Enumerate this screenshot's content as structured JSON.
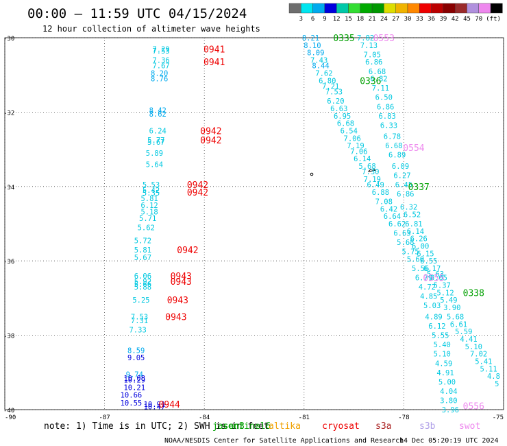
{
  "header": {
    "title": "00:00 – 11:59 UTC 04/15/2024",
    "subtitle": "12 hour collection of altimeter wave heights"
  },
  "colorbar": {
    "colors": [
      "#6e6e6e",
      "#00e5ef",
      "#00aaee",
      "#0000dd",
      "#00c8a8",
      "#33dd33",
      "#00aa00",
      "#009800",
      "#dddd00",
      "#f0b400",
      "#ff8800",
      "#ee0000",
      "#bb0000",
      "#880000",
      "#9a2a2a",
      "#b090dd",
      "#ee88ee",
      "#000000"
    ],
    "labels": [
      "3",
      "6",
      "9",
      "12",
      "15",
      "18",
      "21",
      "24",
      "27",
      "30",
      "33",
      "36",
      "39",
      "42",
      "45",
      "70"
    ],
    "unit": "(ft)"
  },
  "footer": {
    "note_prefix": "note:  1) Time is in UTC;  2) SWH is in feet",
    "credits": "NOAA/NESDIS Center for Satellite Applications and Research",
    "timestamp": "14 Dec 05:20:19 UTC 2024",
    "missions": [
      {
        "name": "jason3",
        "color": "#00a000"
      },
      {
        "name": "sentinel6",
        "color": "#00a000"
      },
      {
        "name": "altika",
        "color": "#f0a000"
      },
      {
        "name": "cryosat",
        "color": "#ee0000"
      },
      {
        "name": "s3a",
        "color": "#aa2222"
      },
      {
        "name": "s3b",
        "color": "#b0a0e8"
      },
      {
        "name": "swot",
        "color": "#ee88ee"
      }
    ]
  },
  "chart_data": {
    "type": "scatter",
    "xlim": [
      -90,
      -75
    ],
    "ylim": [
      -40,
      -30
    ],
    "x_ticks": [
      -90,
      -87,
      -84,
      -81,
      -78,
      -75
    ],
    "y_ticks": [
      -30,
      -32,
      -34,
      -36,
      -38,
      -40
    ],
    "grid": true,
    "time_labels": [
      {
        "text": "0941",
        "lon": -83.7,
        "lat": -30.3,
        "color": "#ee0000"
      },
      {
        "text": "0941",
        "lon": -83.7,
        "lat": -30.65,
        "color": "#ee0000"
      },
      {
        "text": "0942",
        "lon": -83.8,
        "lat": -32.5,
        "color": "#ee0000"
      },
      {
        "text": "0942",
        "lon": -83.8,
        "lat": -32.75,
        "color": "#ee0000"
      },
      {
        "text": "0942",
        "lon": -84.2,
        "lat": -33.95,
        "color": "#ee0000"
      },
      {
        "text": "0942",
        "lon": -84.2,
        "lat": -34.15,
        "color": "#ee0000"
      },
      {
        "text": "0942",
        "lon": -84.5,
        "lat": -35.7,
        "color": "#ee0000"
      },
      {
        "text": "0943",
        "lon": -84.7,
        "lat": -36.4,
        "color": "#ee0000"
      },
      {
        "text": "0943",
        "lon": -84.7,
        "lat": -36.55,
        "color": "#ee0000"
      },
      {
        "text": "0943",
        "lon": -84.8,
        "lat": -37.05,
        "color": "#ee0000"
      },
      {
        "text": "0943",
        "lon": -84.85,
        "lat": -37.5,
        "color": "#ee0000"
      },
      {
        "text": "0944",
        "lon": -85.05,
        "lat": -39.85,
        "color": "#ee0000"
      },
      {
        "text": "0335",
        "lon": -79.8,
        "lat": -30.0,
        "color": "#00a000"
      },
      {
        "text": "0336",
        "lon": -79.0,
        "lat": -31.15,
        "color": "#00a000"
      },
      {
        "text": "0337",
        "lon": -77.55,
        "lat": -34.0,
        "color": "#00a000"
      },
      {
        "text": "0338",
        "lon": -75.9,
        "lat": -36.85,
        "color": "#00a000"
      },
      {
        "text": "0553",
        "lon": -78.6,
        "lat": -30.0,
        "color": "#ee88ee"
      },
      {
        "text": "0554",
        "lon": -77.7,
        "lat": -32.95,
        "color": "#ee88ee"
      },
      {
        "text": "0555",
        "lon": -77.1,
        "lat": -36.45,
        "color": "#ee88ee"
      },
      {
        "text": "0556",
        "lon": -75.9,
        "lat": -39.9,
        "color": "#ee88ee"
      }
    ],
    "wave_heights": [
      {
        "v": "7.29",
        "lon": -85.3,
        "lat": -30.3,
        "c": "#00c8e0"
      },
      {
        "v": "7.53",
        "lon": -85.3,
        "lat": -30.35,
        "c": "#00c8e0"
      },
      {
        "v": "7.36",
        "lon": -85.3,
        "lat": -30.6,
        "c": "#00c8e0"
      },
      {
        "v": "7.67",
        "lon": -85.3,
        "lat": -30.75,
        "c": "#00c8e0"
      },
      {
        "v": "8.20",
        "lon": -85.35,
        "lat": -30.95,
        "c": "#00aaee"
      },
      {
        "v": "8.76",
        "lon": -85.35,
        "lat": -31.1,
        "c": "#00aaee"
      },
      {
        "v": "8.42",
        "lon": -85.4,
        "lat": -31.95,
        "c": "#00aaee"
      },
      {
        "v": "8.62",
        "lon": -85.4,
        "lat": -32.05,
        "c": "#00aaee"
      },
      {
        "v": "6.24",
        "lon": -85.4,
        "lat": -32.5,
        "c": "#00c8e0"
      },
      {
        "v": "5.77",
        "lon": -85.45,
        "lat": -32.75,
        "c": "#00c8e0"
      },
      {
        "v": "5.67",
        "lon": -85.45,
        "lat": -32.8,
        "c": "#00c8e0"
      },
      {
        "v": "5.89",
        "lon": -85.5,
        "lat": -33.1,
        "c": "#00c8e0"
      },
      {
        "v": "5.64",
        "lon": -85.5,
        "lat": -33.4,
        "c": "#00c8e0"
      },
      {
        "v": "5.53",
        "lon": -85.6,
        "lat": -33.95,
        "c": "#00c8e0"
      },
      {
        "v": "5.42",
        "lon": -85.6,
        "lat": -34.1,
        "c": "#00c8e0"
      },
      {
        "v": "5.35",
        "lon": -85.6,
        "lat": -34.17,
        "c": "#00c8e0"
      },
      {
        "v": "5.81",
        "lon": -85.65,
        "lat": -34.32,
        "c": "#00c8e0"
      },
      {
        "v": "6.12",
        "lon": -85.65,
        "lat": -34.5,
        "c": "#00c8e0"
      },
      {
        "v": "5.18",
        "lon": -85.65,
        "lat": -34.68,
        "c": "#00c8e0"
      },
      {
        "v": "5.71",
        "lon": -85.7,
        "lat": -34.85,
        "c": "#00c8e0"
      },
      {
        "v": "5.62",
        "lon": -85.75,
        "lat": -35.1,
        "c": "#00c8e0"
      },
      {
        "v": "5.72",
        "lon": -85.85,
        "lat": -35.45,
        "c": "#00c8e0"
      },
      {
        "v": "5.81",
        "lon": -85.85,
        "lat": -35.7,
        "c": "#00c8e0"
      },
      {
        "v": "5.67",
        "lon": -85.85,
        "lat": -35.9,
        "c": "#00c8e0"
      },
      {
        "v": "6.06",
        "lon": -85.85,
        "lat": -36.4,
        "c": "#00c8e0"
      },
      {
        "v": "5.92",
        "lon": -85.85,
        "lat": -36.55,
        "c": "#00c8e0"
      },
      {
        "v": "5.66",
        "lon": -85.85,
        "lat": -36.62,
        "c": "#00c8e0"
      },
      {
        "v": "5.88",
        "lon": -85.85,
        "lat": -36.7,
        "c": "#00c8e0"
      },
      {
        "v": "5.25",
        "lon": -85.9,
        "lat": -37.05,
        "c": "#00c8e0"
      },
      {
        "v": "7.53",
        "lon": -85.95,
        "lat": -37.5,
        "c": "#00c8e0"
      },
      {
        "v": "7.31",
        "lon": -85.95,
        "lat": -37.6,
        "c": "#00c8e0"
      },
      {
        "v": "7.33",
        "lon": -86.0,
        "lat": -37.85,
        "c": "#00c8e0"
      },
      {
        "v": "8.59",
        "lon": -86.05,
        "lat": -38.4,
        "c": "#00aaee"
      },
      {
        "v": "9.05",
        "lon": -86.05,
        "lat": -38.6,
        "c": "#0000dd"
      },
      {
        "v": "9.74",
        "lon": -86.1,
        "lat": -39.05,
        "c": "#00aaee"
      },
      {
        "v": "10.08",
        "lon": -86.1,
        "lat": -39.15,
        "c": "#0000dd"
      },
      {
        "v": "10.29",
        "lon": -86.1,
        "lat": -39.2,
        "c": "#0000dd"
      },
      {
        "v": "10.21",
        "lon": -86.1,
        "lat": -39.4,
        "c": "#0000dd"
      },
      {
        "v": "10.66",
        "lon": -86.2,
        "lat": -39.6,
        "c": "#0000dd"
      },
      {
        "v": "10.55",
        "lon": -86.2,
        "lat": -39.82,
        "c": "#0000dd"
      },
      {
        "v": "10.91",
        "lon": -85.5,
        "lat": -39.85,
        "c": "#0000dd"
      },
      {
        "v": "10.47",
        "lon": -85.5,
        "lat": -39.92,
        "c": "#0000dd"
      },
      {
        "v": "8.21",
        "lon": -80.8,
        "lat": -30.0,
        "c": "#00aaee"
      },
      {
        "v": "8.10",
        "lon": -80.75,
        "lat": -30.2,
        "c": "#00aaee"
      },
      {
        "v": "8.09",
        "lon": -80.65,
        "lat": -30.4,
        "c": "#00aaee"
      },
      {
        "v": "7.43",
        "lon": -80.55,
        "lat": -30.6,
        "c": "#00c8e0"
      },
      {
        "v": "8.44",
        "lon": -80.5,
        "lat": -30.75,
        "c": "#00aaee"
      },
      {
        "v": "7.62",
        "lon": -80.4,
        "lat": -30.95,
        "c": "#00c8e0"
      },
      {
        "v": "6.80",
        "lon": -80.3,
        "lat": -31.15,
        "c": "#00c8e0"
      },
      {
        "v": "7.21",
        "lon": -80.2,
        "lat": -31.3,
        "c": "#00c8e0"
      },
      {
        "v": "7.53",
        "lon": -80.1,
        "lat": -31.45,
        "c": "#00c8e0"
      },
      {
        "v": "6.20",
        "lon": -80.05,
        "lat": -31.7,
        "c": "#00c8e0"
      },
      {
        "v": "6.63",
        "lon": -79.95,
        "lat": -31.9,
        "c": "#00c8e0"
      },
      {
        "v": "6.95",
        "lon": -79.85,
        "lat": -32.1,
        "c": "#00c8e0"
      },
      {
        "v": "6.68",
        "lon": -79.75,
        "lat": -32.3,
        "c": "#00c8e0"
      },
      {
        "v": "6.54",
        "lon": -79.65,
        "lat": -32.5,
        "c": "#00c8e0"
      },
      {
        "v": "7.06",
        "lon": -79.55,
        "lat": -32.7,
        "c": "#00c8e0"
      },
      {
        "v": "7.19",
        "lon": -79.45,
        "lat": -32.9,
        "c": "#00c8e0"
      },
      {
        "v": "7.06",
        "lon": -79.35,
        "lat": -33.05,
        "c": "#00c8e0"
      },
      {
        "v": "6.14",
        "lon": -79.25,
        "lat": -33.25,
        "c": "#00c8e0"
      },
      {
        "v": "5.68",
        "lon": -79.1,
        "lat": -33.45,
        "c": "#00c8e0"
      },
      {
        "v": "7.30",
        "lon": -79.0,
        "lat": -33.6,
        "c": "#00c8e0"
      },
      {
        "v": "7.19",
        "lon": -78.95,
        "lat": -33.8,
        "c": "#00c8e0"
      },
      {
        "v": "6.49",
        "lon": -78.85,
        "lat": -33.95,
        "c": "#00c8e0"
      },
      {
        "v": "6.88",
        "lon": -78.7,
        "lat": -34.15,
        "c": "#00c8e0"
      },
      {
        "v": "7.08",
        "lon": -78.6,
        "lat": -34.4,
        "c": "#00c8e0"
      },
      {
        "v": "6.42",
        "lon": -78.45,
        "lat": -34.6,
        "c": "#00c8e0"
      },
      {
        "v": "6.64",
        "lon": -78.35,
        "lat": -34.8,
        "c": "#00c8e0"
      },
      {
        "v": "6.62",
        "lon": -78.2,
        "lat": -35.0,
        "c": "#00c8e0"
      },
      {
        "v": "6.63",
        "lon": -78.05,
        "lat": -35.25,
        "c": "#00c8e0"
      },
      {
        "v": "5.68",
        "lon": -77.95,
        "lat": -35.5,
        "c": "#00c8e0"
      },
      {
        "v": "5.75",
        "lon": -77.8,
        "lat": -35.75,
        "c": "#00c8e0"
      },
      {
        "v": "5.60",
        "lon": -77.65,
        "lat": -35.95,
        "c": "#00c8e0"
      },
      {
        "v": "5.56",
        "lon": -77.5,
        "lat": -36.2,
        "c": "#00c8e0"
      },
      {
        "v": "6.79",
        "lon": -77.4,
        "lat": -36.45,
        "c": "#00c8e0"
      },
      {
        "v": "4.72",
        "lon": -77.3,
        "lat": -36.7,
        "c": "#00c8e0"
      },
      {
        "v": "4.85",
        "lon": -77.25,
        "lat": -36.95,
        "c": "#00c8e0"
      },
      {
        "v": "5.03",
        "lon": -77.15,
        "lat": -37.2,
        "c": "#00c8e0"
      },
      {
        "v": "4.89",
        "lon": -77.1,
        "lat": -37.5,
        "c": "#00c8e0"
      },
      {
        "v": "6.12",
        "lon": -77.0,
        "lat": -37.75,
        "c": "#00c8e0"
      },
      {
        "v": "5.55",
        "lon": -76.9,
        "lat": -38.0,
        "c": "#00c8e0"
      },
      {
        "v": "5.40",
        "lon": -76.85,
        "lat": -38.25,
        "c": "#00c8e0"
      },
      {
        "v": "5.10",
        "lon": -76.85,
        "lat": -38.5,
        "c": "#00c8e0"
      },
      {
        "v": "4.59",
        "lon": -76.8,
        "lat": -38.75,
        "c": "#00c8e0"
      },
      {
        "v": "4.91",
        "lon": -76.75,
        "lat": -39.0,
        "c": "#00c8e0"
      },
      {
        "v": "5.00",
        "lon": -76.7,
        "lat": -39.25,
        "c": "#00c8e0"
      },
      {
        "v": "4.04",
        "lon": -76.65,
        "lat": -39.5,
        "c": "#00c8e0"
      },
      {
        "v": "3.80",
        "lon": -76.65,
        "lat": -39.75,
        "c": "#00c8e0"
      },
      {
        "v": "3.96",
        "lon": -76.6,
        "lat": -40.0,
        "c": "#00c8e0"
      },
      {
        "v": "7.82",
        "lon": -79.15,
        "lat": -30.0,
        "c": "#00c8e0"
      },
      {
        "v": "7.13",
        "lon": -79.05,
        "lat": -30.2,
        "c": "#00c8e0"
      },
      {
        "v": "7.05",
        "lon": -78.95,
        "lat": -30.45,
        "c": "#00c8e0"
      },
      {
        "v": "6.86",
        "lon": -78.9,
        "lat": -30.65,
        "c": "#00c8e0"
      },
      {
        "v": "6.68",
        "lon": -78.8,
        "lat": -30.9,
        "c": "#00c8e0"
      },
      {
        "v": "6.82",
        "lon": -78.75,
        "lat": -31.1,
        "c": "#00c8e0"
      },
      {
        "v": "7.11",
        "lon": -78.7,
        "lat": -31.35,
        "c": "#00c8e0"
      },
      {
        "v": "6.50",
        "lon": -78.6,
        "lat": -31.6,
        "c": "#00c8e0"
      },
      {
        "v": "6.86",
        "lon": -78.55,
        "lat": -31.85,
        "c": "#00c8e0"
      },
      {
        "v": "6.83",
        "lon": -78.5,
        "lat": -32.1,
        "c": "#00c8e0"
      },
      {
        "v": "6.33",
        "lon": -78.45,
        "lat": -32.35,
        "c": "#00c8e0"
      },
      {
        "v": "6.78",
        "lon": -78.35,
        "lat": -32.65,
        "c": "#00c8e0"
      },
      {
        "v": "6.68",
        "lon": -78.3,
        "lat": -32.9,
        "c": "#00c8e0"
      },
      {
        "v": "6.89",
        "lon": -78.2,
        "lat": -33.15,
        "c": "#00c8e0"
      },
      {
        "v": "6.09",
        "lon": -78.1,
        "lat": -33.45,
        "c": "#00c8e0"
      },
      {
        "v": "6.27",
        "lon": -78.05,
        "lat": -33.7,
        "c": "#00c8e0"
      },
      {
        "v": "6.45",
        "lon": -78.0,
        "lat": -33.95,
        "c": "#00c8e0"
      },
      {
        "v": "6.86",
        "lon": -77.95,
        "lat": -34.2,
        "c": "#00c8e0"
      },
      {
        "v": "6.32",
        "lon": -77.85,
        "lat": -34.55,
        "c": "#00c8e0"
      },
      {
        "v": "6.52",
        "lon": -77.75,
        "lat": -34.75,
        "c": "#00c8e0"
      },
      {
        "v": "6.81",
        "lon": -77.7,
        "lat": -35.0,
        "c": "#00c8e0"
      },
      {
        "v": "6.14",
        "lon": -77.65,
        "lat": -35.2,
        "c": "#00c8e0"
      },
      {
        "v": "6.26",
        "lon": -77.55,
        "lat": -35.4,
        "c": "#00c8e0"
      },
      {
        "v": "6.00",
        "lon": -77.5,
        "lat": -35.6,
        "c": "#00c8e0"
      },
      {
        "v": "6.15",
        "lon": -77.35,
        "lat": -35.8,
        "c": "#00c8e0"
      },
      {
        "v": "6.55",
        "lon": -77.25,
        "lat": -36.0,
        "c": "#00c8e0"
      },
      {
        "v": "6.17",
        "lon": -77.15,
        "lat": -36.2,
        "c": "#00c8e0"
      },
      {
        "v": "5.63",
        "lon": -77.05,
        "lat": -36.35,
        "c": "#00c8e0"
      },
      {
        "v": "6.05",
        "lon": -76.95,
        "lat": -36.45,
        "c": "#00c8e0"
      },
      {
        "v": "5.37",
        "lon": -76.85,
        "lat": -36.65,
        "c": "#00c8e0"
      },
      {
        "v": "5.12",
        "lon": -76.75,
        "lat": -36.85,
        "c": "#00c8e0"
      },
      {
        "v": "5.49",
        "lon": -76.65,
        "lat": -37.05,
        "c": "#00c8e0"
      },
      {
        "v": "3.90",
        "lon": -76.55,
        "lat": -37.25,
        "c": "#00c8e0"
      },
      {
        "v": "5.68",
        "lon": -76.45,
        "lat": -37.5,
        "c": "#00c8e0"
      },
      {
        "v": "6.61",
        "lon": -76.35,
        "lat": -37.7,
        "c": "#00c8e0"
      },
      {
        "v": "5.59",
        "lon": -76.2,
        "lat": -37.9,
        "c": "#00c8e0"
      },
      {
        "v": "4.41",
        "lon": -76.05,
        "lat": -38.1,
        "c": "#00c8e0"
      },
      {
        "v": "5.10",
        "lon": -75.9,
        "lat": -38.3,
        "c": "#00c8e0"
      },
      {
        "v": "7.02",
        "lon": -75.75,
        "lat": -38.5,
        "c": "#00c8e0"
      },
      {
        "v": "5.41",
        "lon": -75.6,
        "lat": -38.7,
        "c": "#00c8e0"
      },
      {
        "v": "5.11",
        "lon": -75.45,
        "lat": -38.9,
        "c": "#00c8e0"
      },
      {
        "v": "4.8",
        "lon": -75.3,
        "lat": -39.1,
        "c": "#00c8e0"
      },
      {
        "v": "5",
        "lon": -75.2,
        "lat": -39.3,
        "c": "#00c8e0"
      }
    ]
  }
}
